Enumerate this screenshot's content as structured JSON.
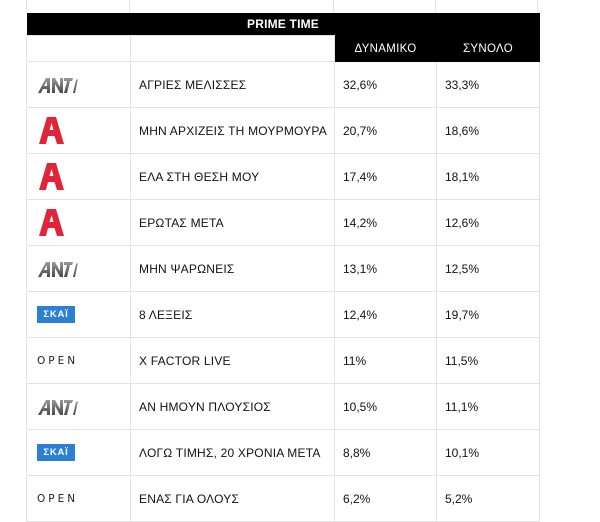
{
  "table": {
    "section_title": "PRIME TIME",
    "columns": [
      "ΔΥΝΑΜΙΚΟ",
      "ΣΥΝΟΛΟ"
    ],
    "rows": [
      {
        "channel": "ANT1",
        "logo_icon": "ant1-logo-icon",
        "show": "ΑΓΡΙΕΣ ΜΕΛΙΣΣΕΣ",
        "dynamic": "32,6%",
        "total": "33,3%"
      },
      {
        "channel": "ALPHA",
        "logo_icon": "alpha-logo-icon",
        "show": "ΜΗΝ ΑΡΧΙΖΕΙΣ ΤΗ ΜΟΥΡΜΟΥΡΑ",
        "dynamic": "20,7%",
        "total": "18,6%"
      },
      {
        "channel": "ALPHA",
        "logo_icon": "alpha-logo-icon",
        "show": "ΕΛΑ ΣΤΗ ΘΕΣΗ ΜΟΥ",
        "dynamic": "17,4%",
        "total": "18,1%"
      },
      {
        "channel": "ALPHA",
        "logo_icon": "alpha-logo-icon",
        "show": "ΕΡΩΤΑΣ ΜΕΤΑ",
        "dynamic": "14,2%",
        "total": "12,6%"
      },
      {
        "channel": "ANT1",
        "logo_icon": "ant1-logo-icon",
        "show": "ΜΗΝ ΨΑΡΩΝΕΙΣ",
        "dynamic": "13,1%",
        "total": "12,5%"
      },
      {
        "channel": "ΣΚΑΪ",
        "logo_icon": "skai-logo-icon",
        "show": "8 ΛΕΞΕΙΣ",
        "dynamic": "12,4%",
        "total": "19,7%"
      },
      {
        "channel": "OPEN",
        "logo_icon": "open-logo-icon",
        "show": "X FACTOR LIVE",
        "dynamic": "11%",
        "total": "11,5%"
      },
      {
        "channel": "ANT1",
        "logo_icon": "ant1-logo-icon",
        "show": "ΑΝ ΗΜΟΥΝ ΠΛΟΥΣΙΟΣ",
        "dynamic": "10,5%",
        "total": "11,1%"
      },
      {
        "channel": "ΣΚΑΪ",
        "logo_icon": "skai-logo-icon",
        "show": "ΛΟΓΩ ΤΙΜΗΣ, 20 ΧΡΟΝΙΑ ΜΕΤΑ",
        "dynamic": "8,8%",
        "total": "10,1%"
      },
      {
        "channel": "OPEN",
        "logo_icon": "open-logo-icon",
        "show": "ΕΝΑΣ ΓΙΑ ΟΛΟΥΣ",
        "dynamic": "6,2%",
        "total": "5,2%"
      }
    ]
  },
  "logos": {
    "skai_text": "ΣΚΑΪ",
    "open_text": "OPEN"
  },
  "colors": {
    "header_bg": "#000000",
    "alpha_red": "#e0243a",
    "skai_blue": "#2b7fd4",
    "ant1_gray": "#6f6f6f"
  }
}
